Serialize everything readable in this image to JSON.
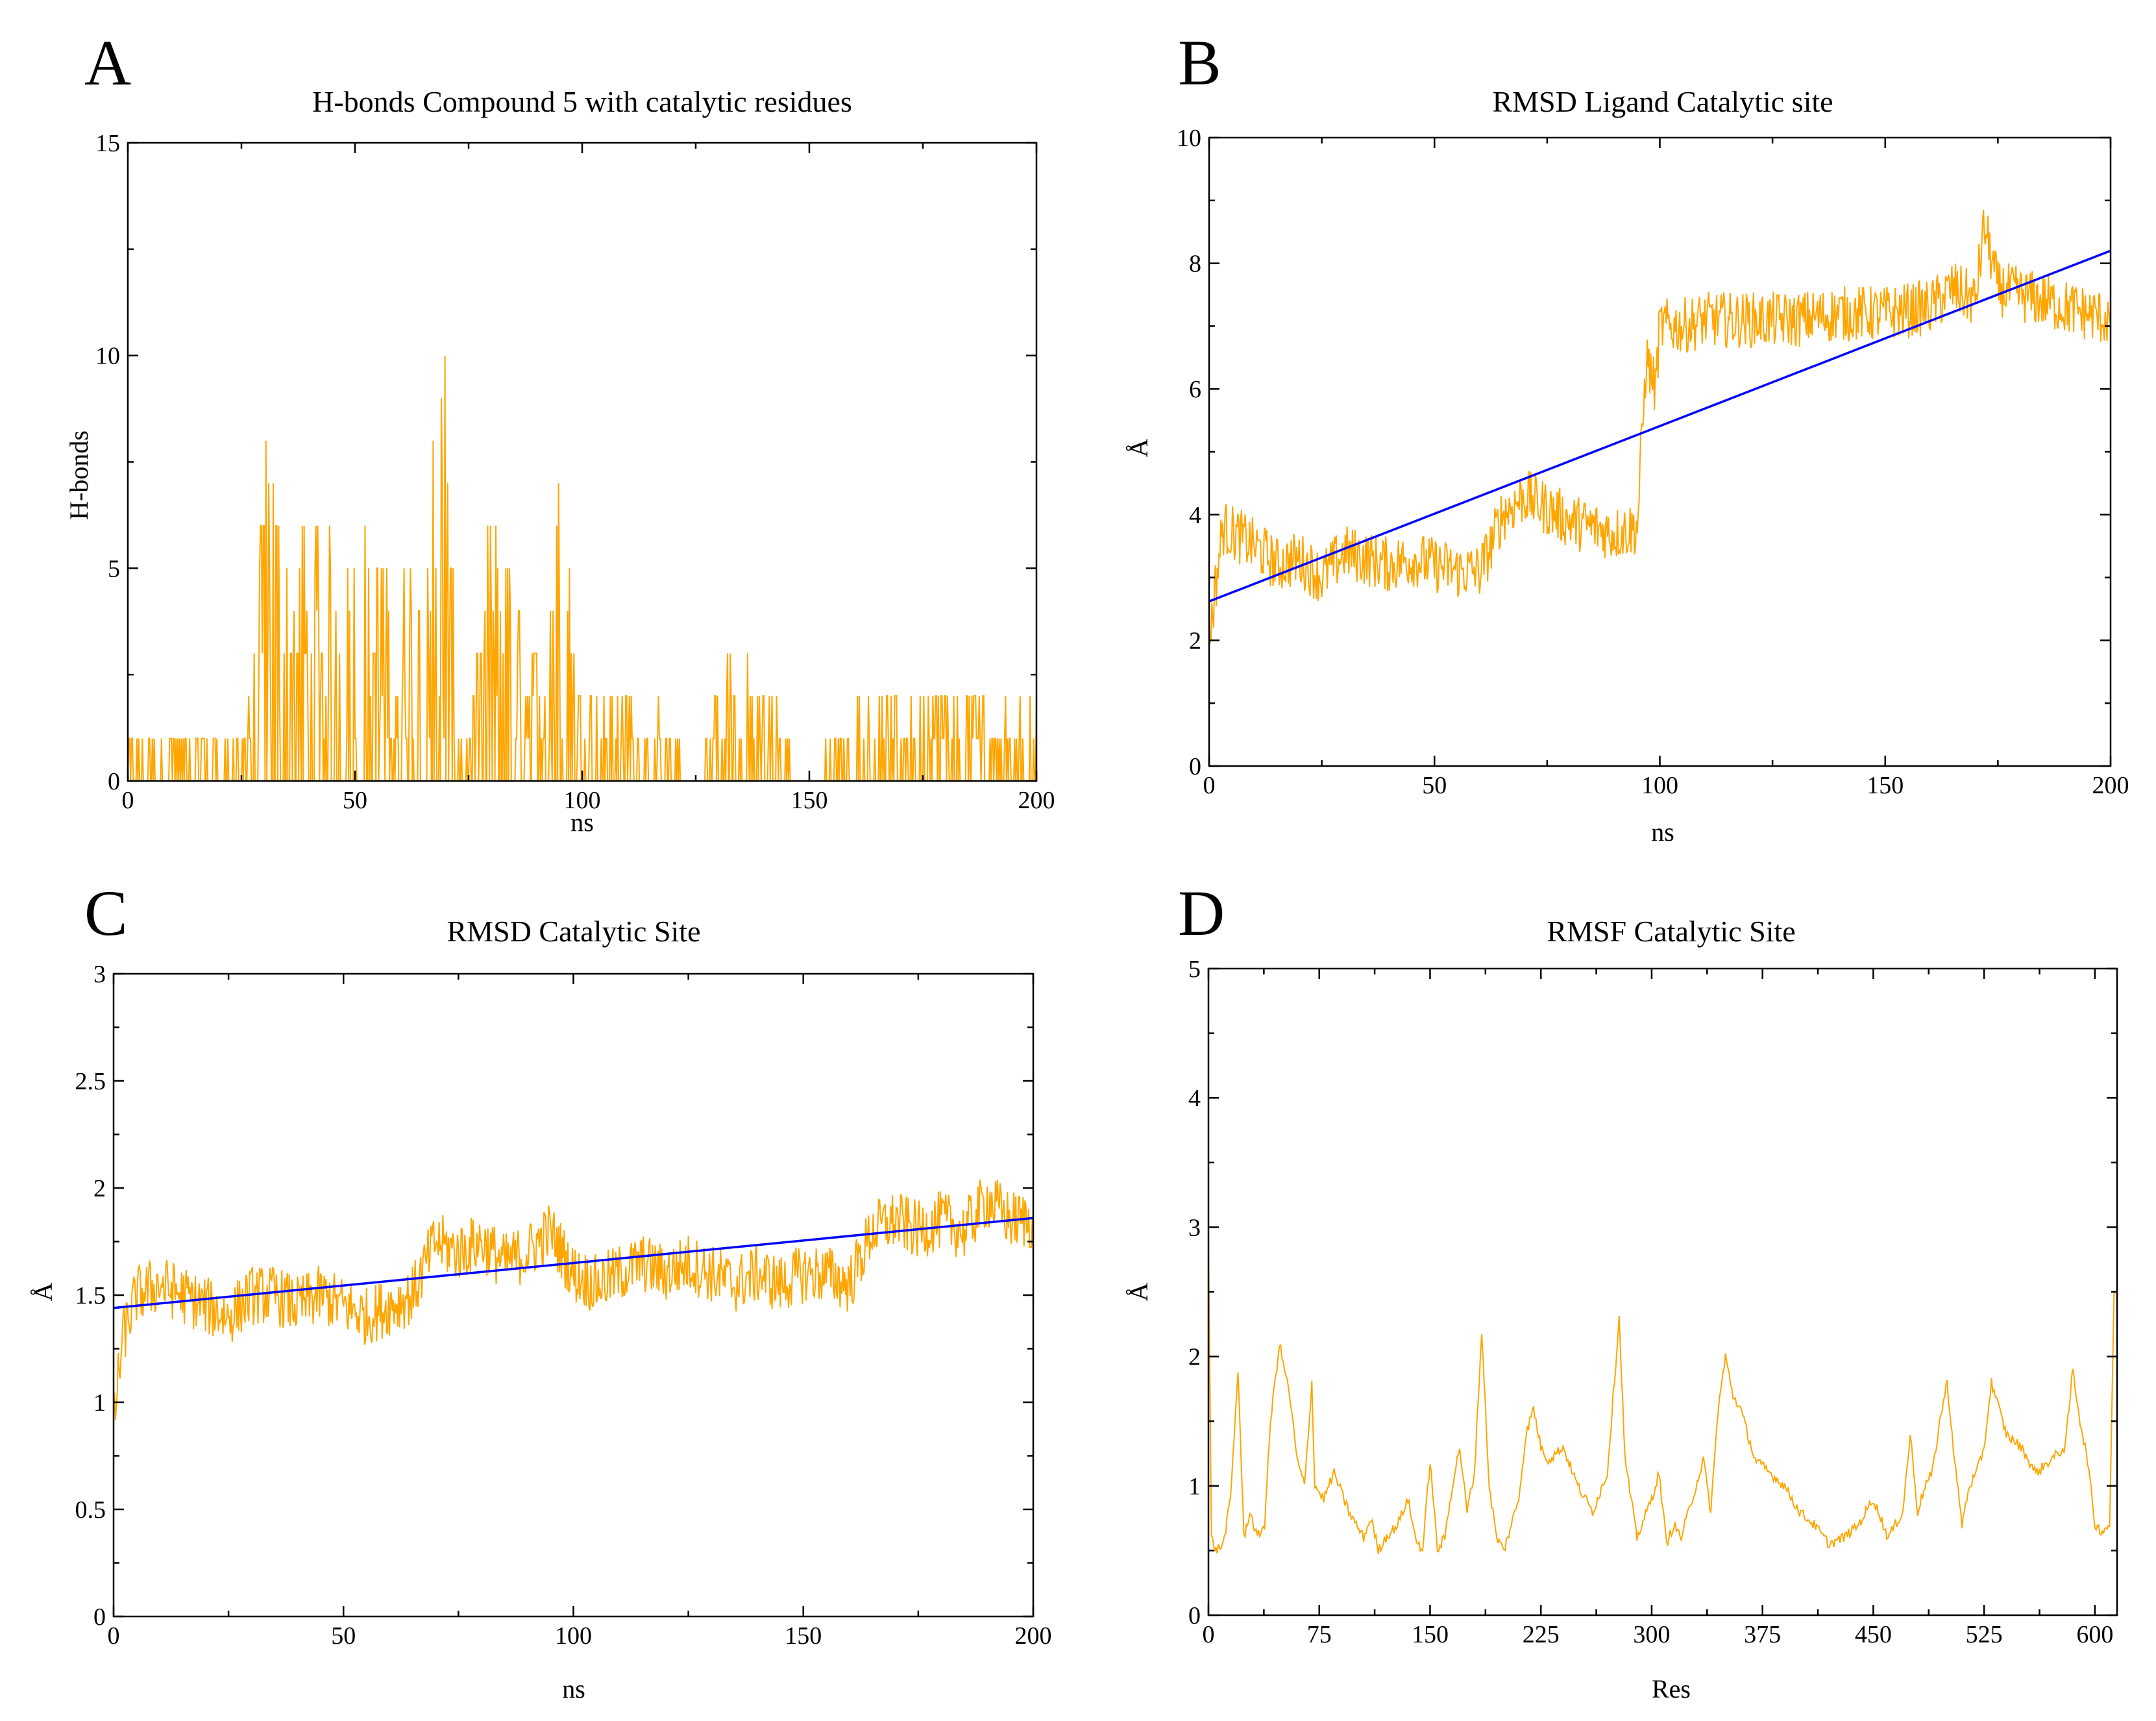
{
  "figure": {
    "panels": [
      {
        "id": "A",
        "letter": "A"
      },
      {
        "id": "B",
        "letter": "B"
      },
      {
        "id": "C",
        "letter": "C"
      },
      {
        "id": "D",
        "letter": "D"
      }
    ]
  },
  "colors": {
    "series": "#ffa500",
    "fit": "#0000ff",
    "axis": "#000000"
  },
  "chart_data": [
    {
      "panel": "A",
      "type": "line",
      "title": "H-bonds Compound 5 with catalytic residues",
      "xlabel": "ns",
      "ylabel": "H-bonds",
      "xlim": [
        0,
        200
      ],
      "ylim": [
        0,
        15
      ],
      "xticks": [
        "0",
        "50",
        "100",
        "150",
        "200"
      ],
      "yticks": [
        "0",
        "5",
        "10",
        "15"
      ],
      "grid": false,
      "style": "spiky step series (integer H-bond counts)",
      "series": [
        {
          "x": [
            0,
            10,
            20,
            25,
            28,
            30,
            35,
            40,
            45,
            50,
            55,
            60,
            65,
            68,
            70,
            72,
            75,
            80,
            85,
            90,
            95,
            100,
            110,
            120,
            125,
            133,
            140,
            150,
            155,
            165,
            175,
            185,
            200
          ],
          "y": [
            1,
            1,
            1,
            1,
            3,
            9,
            5,
            5,
            5,
            5,
            5,
            4,
            6,
            8,
            11,
            2,
            1,
            6,
            4,
            3,
            6,
            2,
            2,
            1,
            0,
            3,
            2,
            0,
            1,
            2,
            2,
            2,
            2
          ]
        }
      ]
    },
    {
      "panel": "B",
      "type": "line",
      "title": "RMSD Ligand Catalytic site",
      "xlabel": "ns",
      "ylabel": "Å",
      "xlim": [
        0,
        200
      ],
      "ylim": [
        0,
        10
      ],
      "xticks": [
        "0",
        "50",
        "100",
        "150",
        "200"
      ],
      "yticks": [
        "0",
        "2",
        "4",
        "6",
        "8",
        "10"
      ],
      "grid": false,
      "series": [
        {
          "x": [
            0,
            3,
            8,
            12,
            15,
            20,
            25,
            30,
            35,
            40,
            45,
            50,
            55,
            60,
            62,
            65,
            70,
            75,
            80,
            85,
            90,
            95,
            97,
            99,
            100,
            105,
            110,
            120,
            130,
            140,
            150,
            160,
            165,
            170,
            172,
            175,
            180,
            190,
            200
          ],
          "y": [
            2.0,
            3.8,
            3.6,
            3.4,
            3.2,
            3.3,
            3.0,
            3.4,
            3.3,
            3.2,
            3.3,
            3.2,
            3.1,
            3.1,
            3.4,
            4.0,
            4.3,
            4.1,
            3.9,
            3.8,
            3.7,
            3.8,
            6.5,
            6.0,
            7.0,
            7.0,
            7.1,
            7.1,
            7.1,
            7.2,
            7.2,
            7.3,
            7.6,
            7.4,
            8.6,
            7.6,
            7.5,
            7.3,
            7.1
          ]
        },
        {
          "name": "",
          "x": [
            0,
            200
          ],
          "y": [
            2.62,
            8.2
          ]
        }
      ]
    },
    {
      "panel": "C",
      "type": "line",
      "title": "RMSD Catalytic Site",
      "xlabel": "ns",
      "ylabel": "Å",
      "xlim": [
        0,
        200
      ],
      "ylim": [
        0,
        3
      ],
      "xticks": [
        "0",
        "50",
        "100",
        "150",
        "200"
      ],
      "yticks": [
        "0",
        "0.5",
        "1",
        "1.5",
        "2",
        "2.5",
        "3"
      ],
      "grid": false,
      "series": [
        {
          "x": [
            0,
            2,
            5,
            10,
            15,
            20,
            25,
            30,
            35,
            40,
            45,
            50,
            55,
            60,
            65,
            70,
            75,
            80,
            85,
            90,
            95,
            100,
            105,
            110,
            115,
            120,
            125,
            130,
            135,
            140,
            145,
            150,
            155,
            160,
            165,
            170,
            175,
            180,
            185,
            190,
            195,
            200
          ],
          "y": [
            0.9,
            1.3,
            1.5,
            1.55,
            1.5,
            1.45,
            1.4,
            1.5,
            1.5,
            1.45,
            1.5,
            1.45,
            1.4,
            1.45,
            1.5,
            1.75,
            1.7,
            1.75,
            1.65,
            1.7,
            1.8,
            1.6,
            1.55,
            1.6,
            1.65,
            1.6,
            1.65,
            1.6,
            1.55,
            1.6,
            1.55,
            1.6,
            1.6,
            1.55,
            1.8,
            1.85,
            1.8,
            1.85,
            1.8,
            1.95,
            1.85,
            1.85
          ]
        },
        {
          "name": "",
          "x": [
            0,
            200
          ],
          "y": [
            1.44,
            1.86
          ]
        }
      ]
    },
    {
      "panel": "D",
      "type": "line",
      "title": "RMSF Catalytic Site",
      "xlabel": "Res",
      "ylabel": "Å",
      "xlim": [
        0,
        615
      ],
      "ylim": [
        0,
        5
      ],
      "xticks": [
        "0",
        "75",
        "150",
        "225",
        "300",
        "375",
        "450",
        "525",
        "600"
      ],
      "xtick_values": [
        0,
        75,
        150,
        225,
        300,
        375,
        450,
        525,
        600
      ],
      "yticks": [
        "0",
        "1",
        "2",
        "3",
        "4",
        "5"
      ],
      "grid": false,
      "series": [
        {
          "x": [
            0,
            2,
            5,
            10,
            15,
            20,
            24,
            28,
            33,
            38,
            42,
            48,
            55,
            60,
            65,
            70,
            72,
            78,
            85,
            95,
            105,
            110,
            115,
            120,
            128,
            135,
            140,
            145,
            150,
            155,
            160,
            165,
            170,
            175,
            180,
            185,
            190,
            195,
            200,
            205,
            210,
            215,
            220,
            225,
            230,
            240,
            250,
            260,
            270,
            278,
            282,
            290,
            300,
            305,
            310,
            315,
            320,
            325,
            330,
            335,
            340,
            345,
            350,
            355,
            360,
            370,
            380,
            390,
            400,
            410,
            420,
            430,
            440,
            450,
            460,
            470,
            475,
            480,
            485,
            490,
            495,
            500,
            505,
            510,
            515,
            520,
            525,
            530,
            540,
            550,
            560,
            570,
            580,
            585,
            590,
            595,
            600,
            605,
            610,
            613
          ],
          "y": [
            2.9,
            0.6,
            0.5,
            0.55,
            0.9,
            1.9,
            0.6,
            0.8,
            0.6,
            0.7,
            1.5,
            2.1,
            1.7,
            1.2,
            1.0,
            1.8,
            1.0,
            0.9,
            1.1,
            0.8,
            0.6,
            0.75,
            0.5,
            0.6,
            0.7,
            0.9,
            0.6,
            0.5,
            1.2,
            0.5,
            0.6,
            1.0,
            1.3,
            0.8,
            1.1,
            2.2,
            1.0,
            0.6,
            0.5,
            0.7,
            0.9,
            1.4,
            1.6,
            1.3,
            1.2,
            1.3,
            1.0,
            0.8,
            1.1,
            2.3,
            1.2,
            0.6,
            0.9,
            1.1,
            0.55,
            0.7,
            0.6,
            0.8,
            1.0,
            1.2,
            0.8,
            1.6,
            2.0,
            1.7,
            1.6,
            1.2,
            1.1,
            1.0,
            0.8,
            0.7,
            0.55,
            0.6,
            0.7,
            0.9,
            0.6,
            0.8,
            1.4,
            0.8,
            1.0,
            1.1,
            1.5,
            1.8,
            1.2,
            0.7,
            1.0,
            1.1,
            1.3,
            1.8,
            1.4,
            1.3,
            1.1,
            1.2,
            1.3,
            1.9,
            1.5,
            1.2,
            0.7,
            0.65,
            0.7,
            2.5
          ]
        }
      ]
    }
  ]
}
